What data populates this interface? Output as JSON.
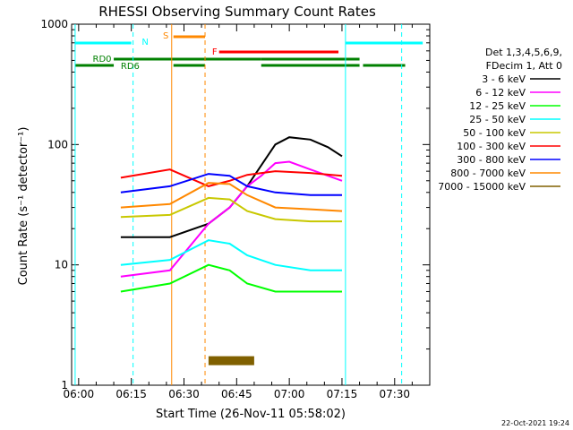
{
  "chart_data": {
    "type": "line",
    "title": "RHESSI Observing Summary Count Rates",
    "xlabel": "Start Time (26-Nov-11 05:58:02)",
    "ylabel": "Count Rate (s⁻¹ detector⁻¹)",
    "x_ticks": [
      "06:00",
      "06:15",
      "06:30",
      "06:45",
      "07:00",
      "07:15",
      "07:30"
    ],
    "x_tick_minutes": [
      0,
      15,
      30,
      45,
      60,
      75,
      90
    ],
    "xlim_minutes": [
      -2,
      100
    ],
    "y_scale": "log",
    "ylim": [
      1,
      1000
    ],
    "y_ticks": [
      "1",
      "10",
      "100",
      "1000"
    ],
    "y_tick_values": [
      1,
      10,
      100,
      1000
    ],
    "legend_header": [
      "Det 1,3,4,5,6,9,",
      "FDecim 1, Att 0"
    ],
    "legend_position": "right",
    "series": [
      {
        "name": "3 - 6 keV",
        "color": "#000000",
        "points": [
          [
            12,
            17
          ],
          [
            26,
            17
          ],
          [
            37,
            22
          ],
          [
            43,
            30
          ],
          [
            48,
            45
          ],
          [
            56,
            100
          ],
          [
            60,
            115
          ],
          [
            66,
            110
          ],
          [
            71,
            95
          ],
          [
            75,
            80
          ]
        ]
      },
      {
        "name": "6 - 12 keV",
        "color": "#ff00ff",
        "points": [
          [
            12,
            8
          ],
          [
            26,
            9
          ],
          [
            37,
            22
          ],
          [
            43,
            30
          ],
          [
            48,
            45
          ],
          [
            52,
            55
          ],
          [
            56,
            70
          ],
          [
            60,
            72
          ],
          [
            66,
            62
          ],
          [
            71,
            55
          ],
          [
            75,
            50
          ]
        ]
      },
      {
        "name": "12 - 25 keV",
        "color": "#00ff00",
        "points": [
          [
            12,
            6
          ],
          [
            26,
            7
          ],
          [
            37,
            10
          ],
          [
            43,
            9
          ],
          [
            48,
            7
          ],
          [
            56,
            6
          ],
          [
            66,
            6
          ],
          [
            75,
            6
          ]
        ]
      },
      {
        "name": "25 - 50 keV",
        "color": "#00ffff",
        "points": [
          [
            12,
            10
          ],
          [
            26,
            11
          ],
          [
            37,
            16
          ],
          [
            43,
            15
          ],
          [
            48,
            12
          ],
          [
            56,
            10
          ],
          [
            66,
            9
          ],
          [
            75,
            9
          ]
        ]
      },
      {
        "name": "50 - 100 keV",
        "color": "#c8c800",
        "points": [
          [
            12,
            25
          ],
          [
            26,
            26
          ],
          [
            37,
            36
          ],
          [
            43,
            35
          ],
          [
            48,
            28
          ],
          [
            56,
            24
          ],
          [
            66,
            23
          ],
          [
            75,
            23
          ]
        ]
      },
      {
        "name": "100 - 300 keV",
        "color": "#ff0000",
        "points": [
          [
            12,
            53
          ],
          [
            26,
            62
          ],
          [
            37,
            45
          ],
          [
            43,
            50
          ],
          [
            48,
            56
          ],
          [
            56,
            60
          ],
          [
            66,
            58
          ],
          [
            75,
            55
          ]
        ]
      },
      {
        "name": "300 - 800 keV",
        "color": "#0000ff",
        "points": [
          [
            12,
            40
          ],
          [
            26,
            45
          ],
          [
            37,
            57
          ],
          [
            43,
            55
          ],
          [
            48,
            45
          ],
          [
            56,
            40
          ],
          [
            66,
            38
          ],
          [
            75,
            38
          ]
        ]
      },
      {
        "name": "800 - 7000 keV",
        "color": "#ff8800",
        "points": [
          [
            12,
            30
          ],
          [
            26,
            32
          ],
          [
            37,
            48
          ],
          [
            43,
            47
          ],
          [
            48,
            38
          ],
          [
            56,
            30
          ],
          [
            66,
            29
          ],
          [
            75,
            28
          ]
        ]
      },
      {
        "name": "7000 - 15000 keV",
        "color": "#806000",
        "points": [
          [
            37,
            1.6
          ],
          [
            50,
            1.6
          ]
        ]
      }
    ],
    "annotations": [
      {
        "label": "N",
        "color": "#00ffff"
      },
      {
        "label": "S",
        "color": "#ff8800"
      },
      {
        "label": "F",
        "color": "#ff0000"
      },
      {
        "label": "RD0",
        "color": "#008000"
      },
      {
        "label": "RD6",
        "color": "#008000"
      }
    ],
    "grid": false
  },
  "footer": {
    "timestamp": "22-Oct-2021 19:24"
  }
}
